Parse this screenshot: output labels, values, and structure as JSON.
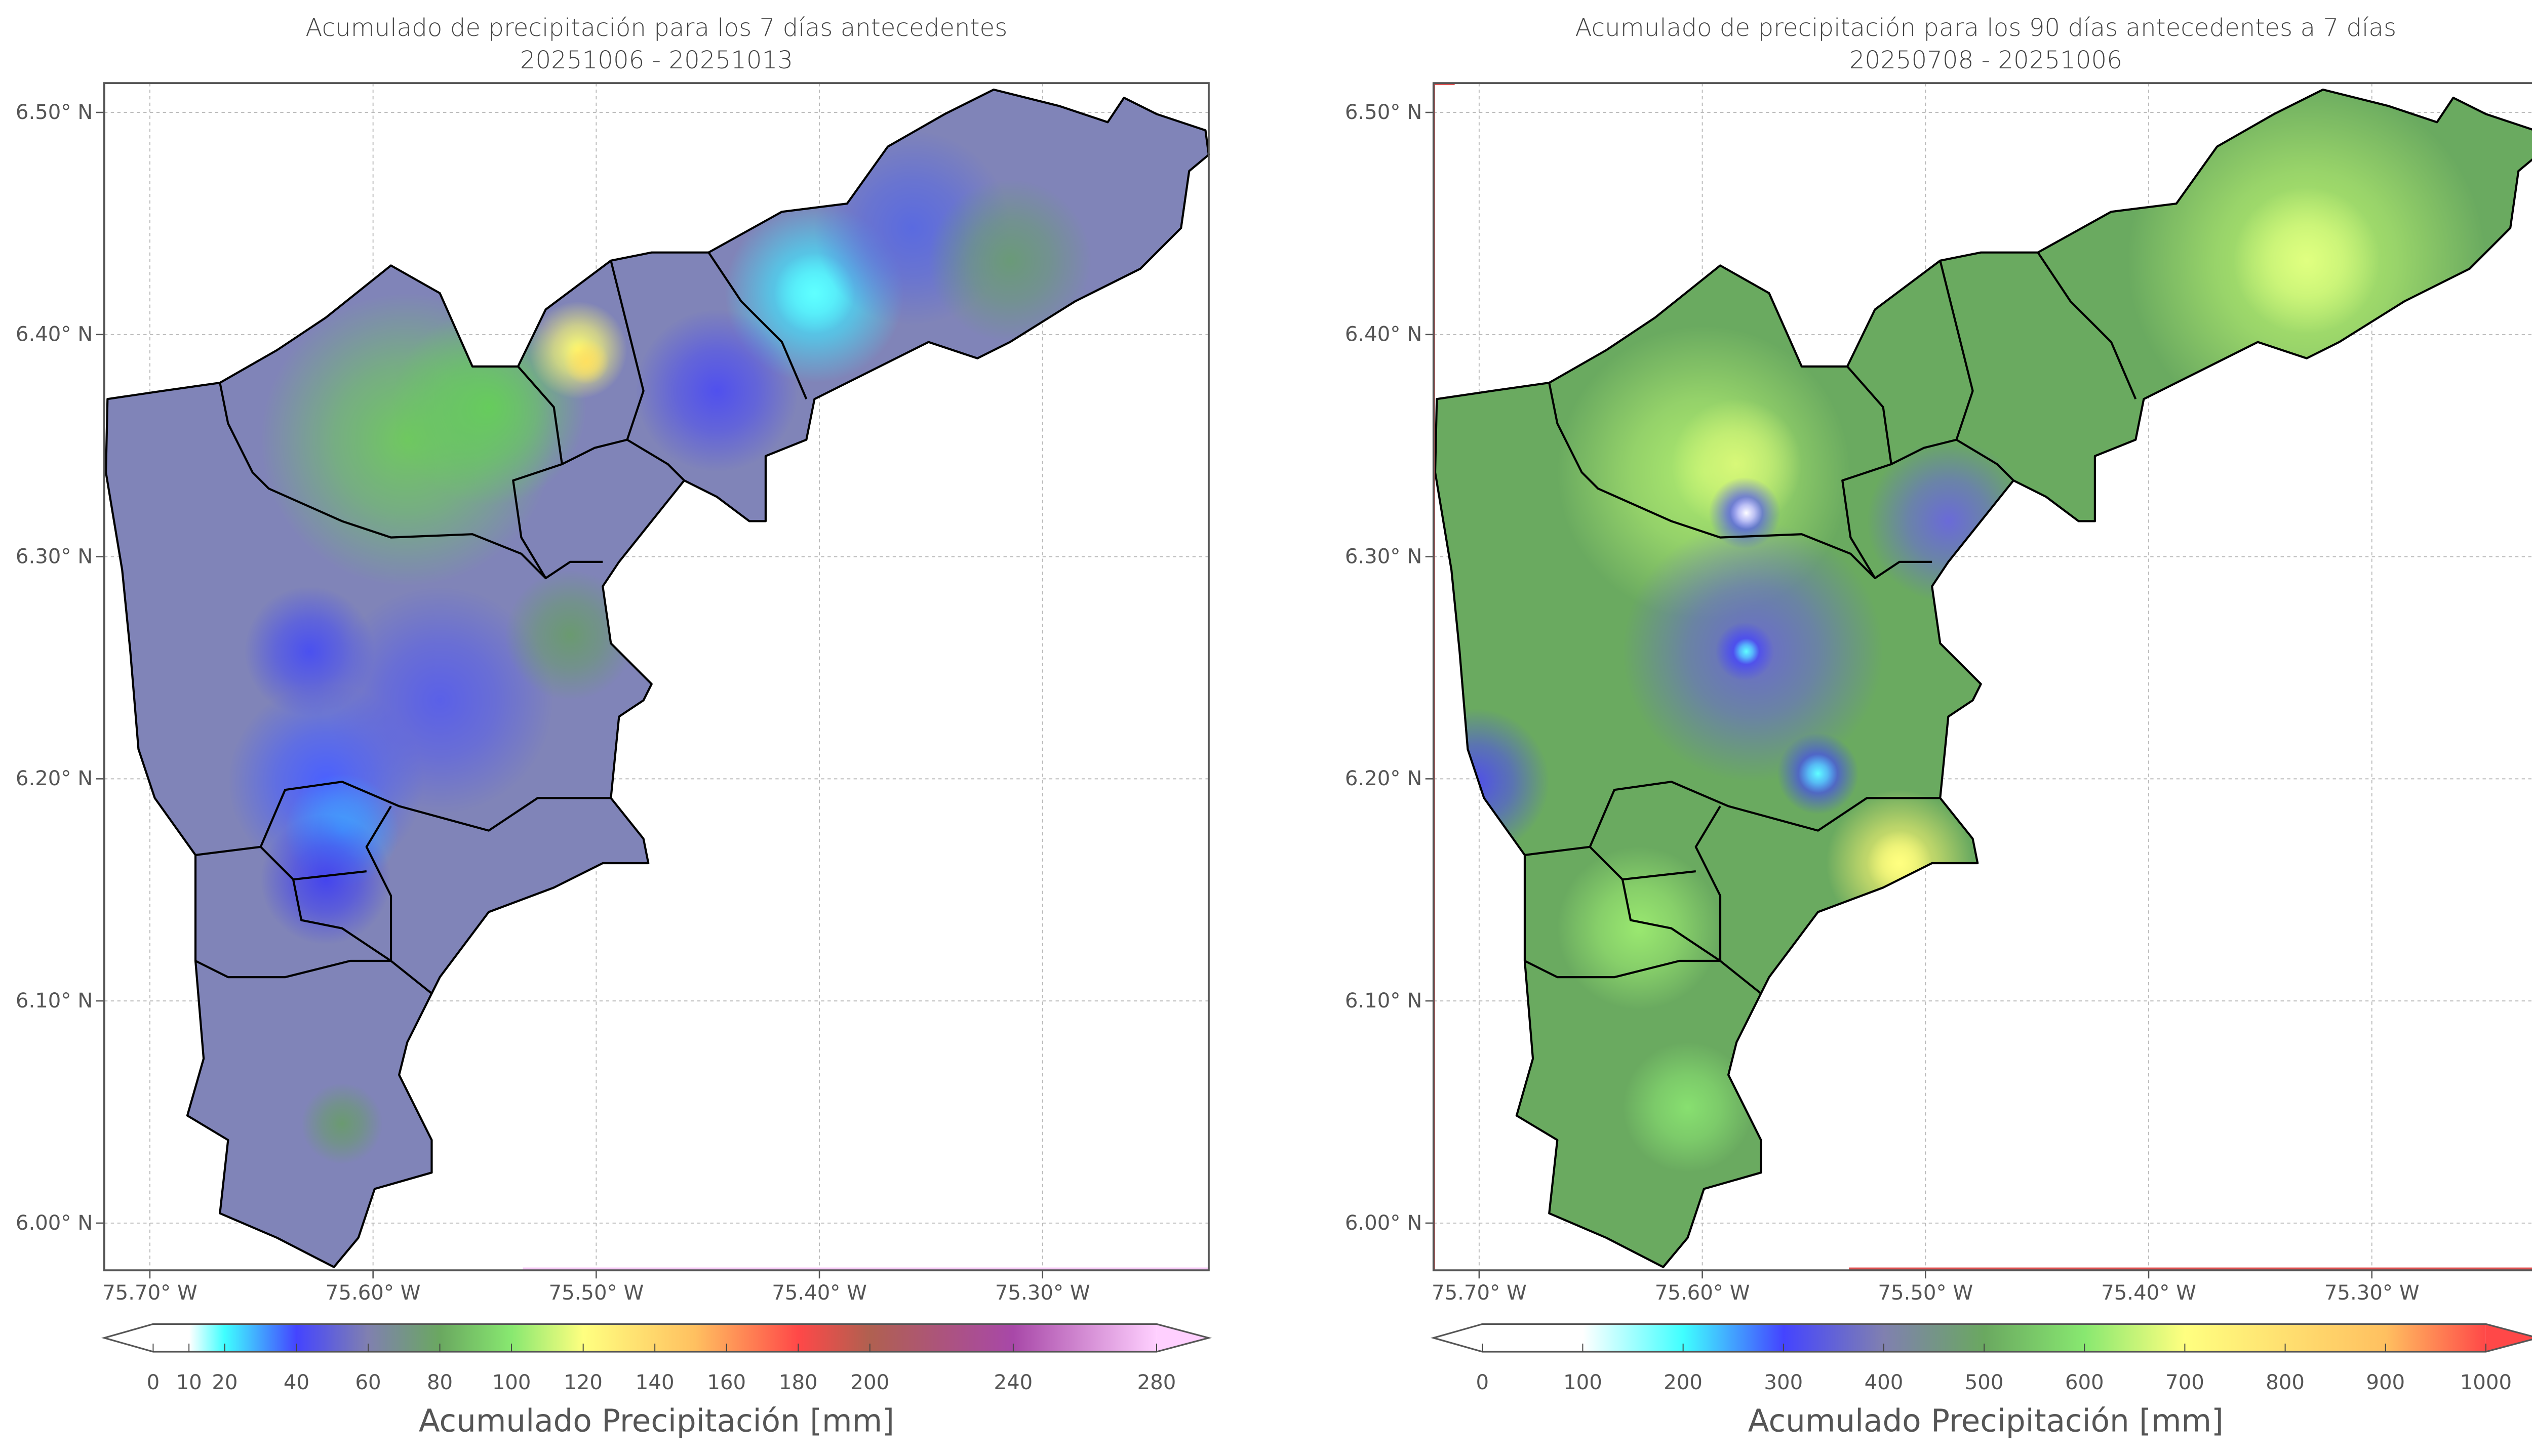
{
  "panels": [
    {
      "title_line1": "Acumulado de precipitación para los 7 días antecedentes",
      "title_line2": "20251006 - 20251013",
      "base_color": "#8084b8",
      "colorbar": {
        "label": "Acumulado Precipitación [mm]",
        "ticks": [
          "0",
          "10",
          "20",
          "40",
          "60",
          "80",
          "100",
          "120",
          "140",
          "160",
          "180",
          "200",
          "240",
          "280"
        ],
        "extend": "both",
        "colors": [
          "#ffffff",
          "#40ffff",
          "#4444ff",
          "#8080b0",
          "#6aa860",
          "#88e870",
          "#ffff80",
          "#ffc060",
          "#ff4848",
          "#b06050",
          "#a848a8",
          "#ffd0ff"
        ]
      }
    },
    {
      "title_line1": "Acumulado de precipitación para los 90 días antecedentes a 7 días",
      "title_line2": "20250708 - 20251006",
      "base_color": "#6aaa60",
      "colorbar": {
        "label": "Acumulado Precipitación [mm]",
        "ticks": [
          "0",
          "100",
          "200",
          "300",
          "400",
          "500",
          "600",
          "700",
          "800",
          "900",
          "1000"
        ],
        "extend": "both",
        "colors": [
          "#ffffff",
          "#40ffff",
          "#4444ff",
          "#8080b0",
          "#6aa860",
          "#88e870",
          "#ffff80",
          "#ffc060",
          "#ff4848"
        ]
      }
    }
  ],
  "axes": {
    "lon_ticks": [
      "75.70° W",
      "75.60° W",
      "75.50° W",
      "75.40° W",
      "75.30° W"
    ],
    "lat_ticks": [
      "6.50° N",
      "6.40° N",
      "6.30° N",
      "6.20° N",
      "6.10° N",
      "6.00° N"
    ]
  }
}
